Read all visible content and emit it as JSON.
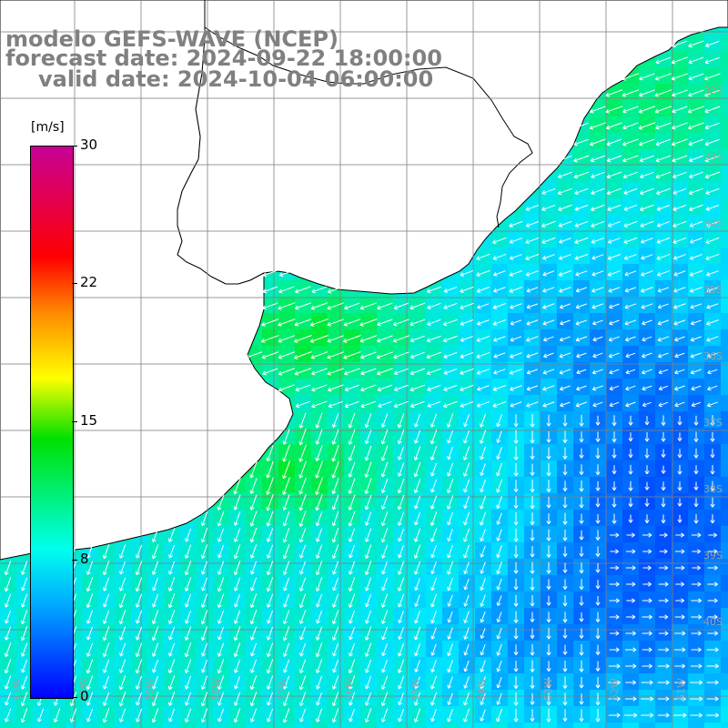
{
  "title": {
    "line1": "modelo GEFS-WAVE (NCEP)",
    "line2": "forecast date: 2024-09-22 18:00:00",
    "line3": "valid date: 2024-10-04 06:00:00"
  },
  "colorbar": {
    "unit": "[m/s]",
    "ticks": [
      "30",
      "22",
      "15",
      "8",
      "0"
    ],
    "tick_values": [
      30,
      22,
      15,
      8,
      0
    ],
    "colors": [
      "#0000ff",
      "#00aaff",
      "#00ffee",
      "#00e000",
      "#ffff00",
      "#ff8800",
      "#ff0000",
      "#c80096"
    ]
  },
  "map": {
    "latitude_labels": [
      "32S",
      "33S",
      "34S",
      "35S",
      "36S",
      "37S",
      "38S",
      "39S",
      "40S"
    ],
    "longitude_labels": [
      "61W",
      "60W",
      "59W",
      "58W",
      "57W",
      "56W",
      "55W",
      "54W",
      "53W",
      "52W",
      "51W"
    ],
    "land_color": "#ffffff",
    "coastline_color": "#000000",
    "gridline_color": "#808080",
    "arrow_color": "#ffffff"
  }
}
